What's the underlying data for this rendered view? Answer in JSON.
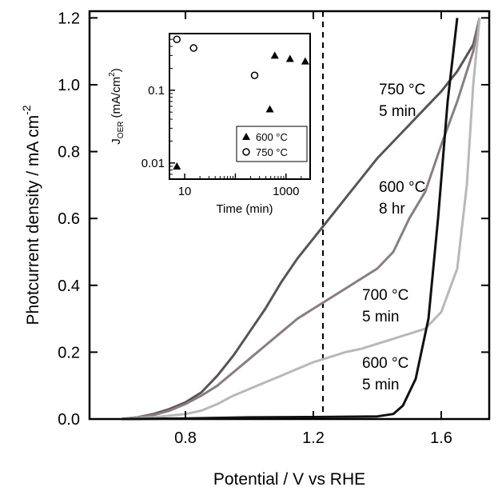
{
  "chart_data": [
    {
      "type": "line",
      "xlabel": "Potential / V vs RHE",
      "ylabel": "Photcurrent density / mA cm",
      "ylabel_superscript": "-2",
      "xlim": [
        0.5,
        1.75
      ],
      "ylim": [
        0,
        1.22
      ],
      "xticks": [
        0.8,
        1.2,
        1.6
      ],
      "xtick_labels": [
        "0.8",
        "1.2",
        "1.6"
      ],
      "yticks": [
        0.0,
        0.2,
        0.4,
        0.6,
        0.8,
        1.0,
        1.2
      ],
      "ytick_labels": [
        "0.0",
        "0.2",
        "0.4",
        "0.6",
        "0.8",
        "1.0",
        "1.2"
      ],
      "reference_line_x": 1.23,
      "series": [
        {
          "line1": "750 °C",
          "line2": "5 min",
          "color": "#5a5354",
          "points": [
            [
              0.6,
              0.0
            ],
            [
              0.65,
              0.005
            ],
            [
              0.7,
              0.015
            ],
            [
              0.75,
              0.03
            ],
            [
              0.8,
              0.05
            ],
            [
              0.85,
              0.08
            ],
            [
              0.9,
              0.13
            ],
            [
              0.95,
              0.19
            ],
            [
              1.0,
              0.26
            ],
            [
              1.05,
              0.33
            ],
            [
              1.1,
              0.41
            ],
            [
              1.15,
              0.48
            ],
            [
              1.2,
              0.54
            ],
            [
              1.25,
              0.6
            ],
            [
              1.3,
              0.66
            ],
            [
              1.35,
              0.72
            ],
            [
              1.4,
              0.78
            ],
            [
              1.45,
              0.83
            ],
            [
              1.5,
              0.88
            ],
            [
              1.55,
              0.93
            ],
            [
              1.6,
              0.98
            ],
            [
              1.65,
              1.04
            ],
            [
              1.7,
              1.12
            ],
            [
              1.72,
              1.2
            ]
          ]
        },
        {
          "line1": "600 °C",
          "line2": "8 hr",
          "color": "#8a7d7f",
          "points": [
            [
              0.6,
              0.0
            ],
            [
              0.65,
              0.005
            ],
            [
              0.7,
              0.012
            ],
            [
              0.75,
              0.025
            ],
            [
              0.8,
              0.045
            ],
            [
              0.85,
              0.07
            ],
            [
              0.9,
              0.1
            ],
            [
              0.95,
              0.14
            ],
            [
              1.0,
              0.18
            ],
            [
              1.05,
              0.22
            ],
            [
              1.1,
              0.26
            ],
            [
              1.15,
              0.3
            ],
            [
              1.2,
              0.33
            ],
            [
              1.25,
              0.36
            ],
            [
              1.3,
              0.39
            ],
            [
              1.35,
              0.42
            ],
            [
              1.4,
              0.45
            ],
            [
              1.45,
              0.5
            ],
            [
              1.5,
              0.6
            ],
            [
              1.55,
              0.68
            ],
            [
              1.6,
              0.82
            ],
            [
              1.65,
              0.95
            ],
            [
              1.7,
              1.1
            ],
            [
              1.72,
              1.2
            ]
          ]
        },
        {
          "line1": "700 °C",
          "line2": "5 min",
          "color": "#b8b8b8",
          "points": [
            [
              0.6,
              0.0
            ],
            [
              0.7,
              0.005
            ],
            [
              0.75,
              0.01
            ],
            [
              0.8,
              0.015
            ],
            [
              0.85,
              0.025
            ],
            [
              0.9,
              0.045
            ],
            [
              0.95,
              0.07
            ],
            [
              1.0,
              0.09
            ],
            [
              1.05,
              0.11
            ],
            [
              1.1,
              0.13
            ],
            [
              1.15,
              0.15
            ],
            [
              1.2,
              0.17
            ],
            [
              1.25,
              0.185
            ],
            [
              1.3,
              0.2
            ],
            [
              1.35,
              0.21
            ],
            [
              1.4,
              0.225
            ],
            [
              1.45,
              0.24
            ],
            [
              1.5,
              0.255
            ],
            [
              1.55,
              0.27
            ],
            [
              1.6,
              0.32
            ],
            [
              1.65,
              0.45
            ],
            [
              1.68,
              0.7
            ],
            [
              1.7,
              1.0
            ],
            [
              1.72,
              1.2
            ]
          ]
        },
        {
          "line1": "600 °C",
          "line2": "5 min",
          "color": "#111111",
          "points": [
            [
              0.6,
              0.0
            ],
            [
              0.8,
              0.002
            ],
            [
              1.0,
              0.005
            ],
            [
              1.2,
              0.006
            ],
            [
              1.3,
              0.007
            ],
            [
              1.4,
              0.008
            ],
            [
              1.45,
              0.015
            ],
            [
              1.48,
              0.04
            ],
            [
              1.52,
              0.12
            ],
            [
              1.56,
              0.3
            ],
            [
              1.59,
              0.6
            ],
            [
              1.62,
              0.95
            ],
            [
              1.65,
              1.2
            ]
          ]
        }
      ]
    },
    {
      "type": "scatter",
      "xlabel": "Time (min)",
      "ylabel": "J",
      "ylabel_subscript": "OER",
      "ylabel_units": "(mA/cm",
      "ylabel_units_superscript": "2",
      "ylabel_units_close": ")",
      "xscale": "log",
      "yscale": "log",
      "xtick_labels": [
        "10",
        "1000"
      ],
      "ytick_labels": [
        "0.01",
        "0.1"
      ],
      "series": [
        {
          "name": "600 °C",
          "marker": "filled-triangle",
          "points": [
            [
              7,
              0.009
            ],
            [
              480,
              0.055
            ],
            [
              600,
              0.3
            ],
            [
              1200,
              0.27
            ],
            [
              2400,
              0.25
            ]
          ]
        },
        {
          "name": "750 °C",
          "marker": "open-circle",
          "points": [
            [
              7,
              0.5
            ],
            [
              15,
              0.38
            ],
            [
              240,
              0.16
            ]
          ]
        }
      ]
    }
  ]
}
